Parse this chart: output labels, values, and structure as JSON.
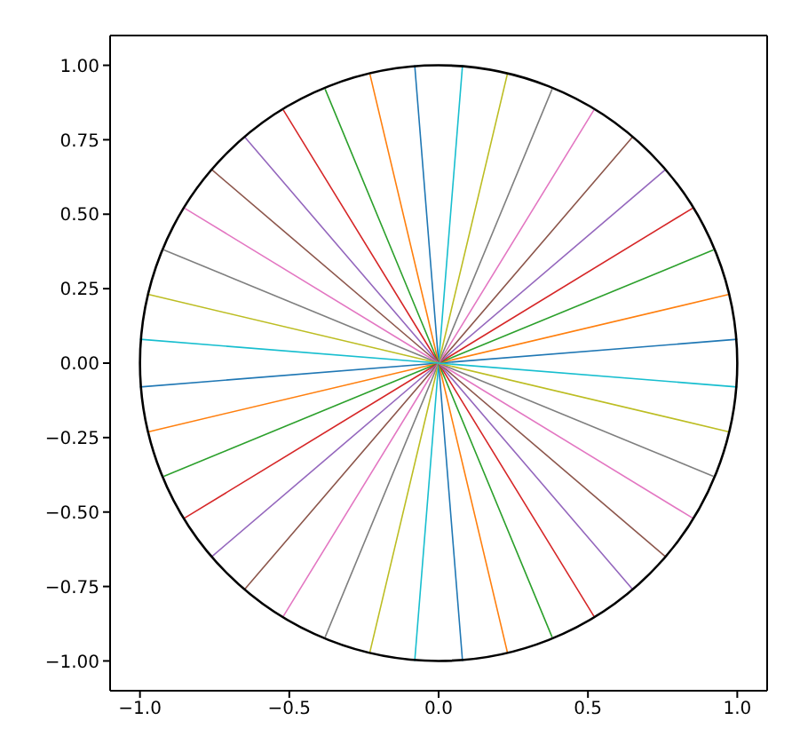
{
  "chart_data": {
    "type": "line",
    "xlim": [
      -1.1,
      1.1
    ],
    "ylim": [
      -1.1,
      1.1
    ],
    "xticks": [
      {
        "value": -1,
        "label": "−1.0"
      },
      {
        "value": -0.5,
        "label": "−0.5"
      },
      {
        "value": 0,
        "label": "0.0"
      },
      {
        "value": 0.5,
        "label": "0.5"
      },
      {
        "value": 1,
        "label": "1.0"
      }
    ],
    "yticks": [
      {
        "value": -1,
        "label": "−1.00"
      },
      {
        "value": -0.75,
        "label": "−0.75"
      },
      {
        "value": -0.5,
        "label": "−0.50"
      },
      {
        "value": -0.25,
        "label": "−0.25"
      },
      {
        "value": 0,
        "label": "0.00"
      },
      {
        "value": 0.25,
        "label": "0.25"
      },
      {
        "value": 0.5,
        "label": "0.50"
      },
      {
        "value": 0.75,
        "label": "0.75"
      },
      {
        "value": 1,
        "label": "1.00"
      }
    ],
    "series": [
      {
        "color": "#1f77b4",
        "x": [
          -1,
          0,
          1
        ],
        "values": [
          -0.08,
          0,
          0.08
        ]
      },
      {
        "color": "#ff7f0e",
        "x": [
          -0.97,
          0,
          0.97
        ],
        "values": [
          -0.23,
          0,
          0.23
        ]
      },
      {
        "color": "#2ca02c",
        "x": [
          -0.92,
          0,
          0.92
        ],
        "values": [
          -0.38,
          0,
          0.38
        ]
      },
      {
        "color": "#d62728",
        "x": [
          -0.85,
          0,
          0.85
        ],
        "values": [
          -0.52,
          0,
          0.52
        ]
      },
      {
        "color": "#9467bd",
        "x": [
          -0.76,
          0,
          0.76
        ],
        "values": [
          -0.65,
          0,
          0.65
        ]
      },
      {
        "color": "#8c564b",
        "x": [
          -0.65,
          0,
          0.65
        ],
        "values": [
          -0.76,
          0,
          0.76
        ]
      },
      {
        "color": "#e377c2",
        "x": [
          -0.52,
          0,
          0.52
        ],
        "values": [
          -0.85,
          0,
          0.85
        ]
      },
      {
        "color": "#7f7f7f",
        "x": [
          -0.38,
          0,
          0.38
        ],
        "values": [
          -0.92,
          0,
          0.92
        ]
      },
      {
        "color": "#bcbd22",
        "x": [
          -0.23,
          0,
          0.23
        ],
        "values": [
          -0.97,
          0,
          0.97
        ]
      },
      {
        "color": "#17becf",
        "x": [
          -0.08,
          0,
          0.08
        ],
        "values": [
          -1,
          0,
          1
        ]
      },
      {
        "color": "#1f77b4",
        "x": [
          -0.08,
          0,
          0.08
        ],
        "values": [
          1,
          0,
          -1
        ]
      },
      {
        "color": "#ff7f0e",
        "x": [
          -0.23,
          0,
          0.23
        ],
        "values": [
          0.97,
          0,
          -0.97
        ]
      },
      {
        "color": "#2ca02c",
        "x": [
          -0.38,
          0,
          0.38
        ],
        "values": [
          0.92,
          0,
          -0.92
        ]
      },
      {
        "color": "#d62728",
        "x": [
          -0.52,
          0,
          0.52
        ],
        "values": [
          0.85,
          0,
          -0.85
        ]
      },
      {
        "color": "#9467bd",
        "x": [
          -0.65,
          0,
          0.65
        ],
        "values": [
          0.76,
          0,
          -0.76
        ]
      },
      {
        "color": "#8c564b",
        "x": [
          -0.76,
          0,
          0.76
        ],
        "values": [
          0.65,
          0,
          -0.65
        ]
      },
      {
        "color": "#e377c2",
        "x": [
          -0.85,
          0,
          0.85
        ],
        "values": [
          0.52,
          0,
          -0.52
        ]
      },
      {
        "color": "#7f7f7f",
        "x": [
          -0.92,
          0,
          0.92
        ],
        "values": [
          0.38,
          0,
          -0.38
        ]
      },
      {
        "color": "#bcbd22",
        "x": [
          -0.97,
          0,
          0.97
        ],
        "values": [
          0.23,
          0,
          -0.23
        ]
      },
      {
        "color": "#17becf",
        "x": [
          -1,
          0,
          1
        ],
        "values": [
          0.08,
          0,
          -0.08
        ]
      }
    ]
  }
}
